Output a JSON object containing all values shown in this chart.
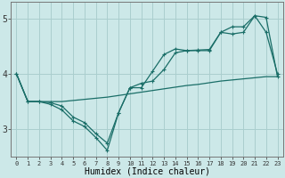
{
  "xlabel": "Humidex (Indice chaleur)",
  "bg_color": "#cce8e8",
  "grid_color": "#aacece",
  "line_color": "#1a6e68",
  "xlim": [
    -0.5,
    23.5
  ],
  "ylim": [
    2.5,
    5.3
  ],
  "xticks": [
    0,
    1,
    2,
    3,
    4,
    5,
    6,
    7,
    8,
    9,
    10,
    11,
    12,
    13,
    14,
    15,
    16,
    17,
    18,
    19,
    20,
    21,
    22,
    23
  ],
  "yticks": [
    3,
    4,
    5
  ],
  "line1_x": [
    0,
    1,
    2,
    3,
    4,
    5,
    6,
    7,
    8,
    9,
    10,
    11,
    12,
    13,
    14,
    15,
    16,
    17,
    18,
    19,
    20,
    21,
    22,
    23
  ],
  "line1_y": [
    4.0,
    3.5,
    3.5,
    3.45,
    3.35,
    3.15,
    3.05,
    2.85,
    2.62,
    3.3,
    3.75,
    3.75,
    4.05,
    4.35,
    4.45,
    4.42,
    4.42,
    4.42,
    4.75,
    4.85,
    4.85,
    5.05,
    5.02,
    3.95
  ],
  "line2_x": [
    0,
    1,
    2,
    3,
    4,
    5,
    6,
    7,
    8,
    9,
    10,
    11,
    12,
    13,
    14,
    15,
    16,
    17,
    18,
    19,
    20,
    21,
    22,
    23
  ],
  "line2_y": [
    4.0,
    3.5,
    3.5,
    3.48,
    3.42,
    3.22,
    3.12,
    2.92,
    2.75,
    3.3,
    3.75,
    3.83,
    3.87,
    4.08,
    4.38,
    4.42,
    4.43,
    4.44,
    4.75,
    4.72,
    4.75,
    5.05,
    4.75,
    4.0
  ],
  "line3_x": [
    0,
    1,
    2,
    3,
    4,
    5,
    6,
    7,
    8,
    9,
    10,
    11,
    12,
    13,
    14,
    15,
    16,
    17,
    18,
    19,
    20,
    21,
    22,
    23
  ],
  "line3_y": [
    4.0,
    3.5,
    3.5,
    3.5,
    3.5,
    3.52,
    3.54,
    3.56,
    3.58,
    3.61,
    3.64,
    3.67,
    3.7,
    3.73,
    3.76,
    3.79,
    3.81,
    3.84,
    3.87,
    3.89,
    3.91,
    3.93,
    3.95,
    3.95
  ]
}
